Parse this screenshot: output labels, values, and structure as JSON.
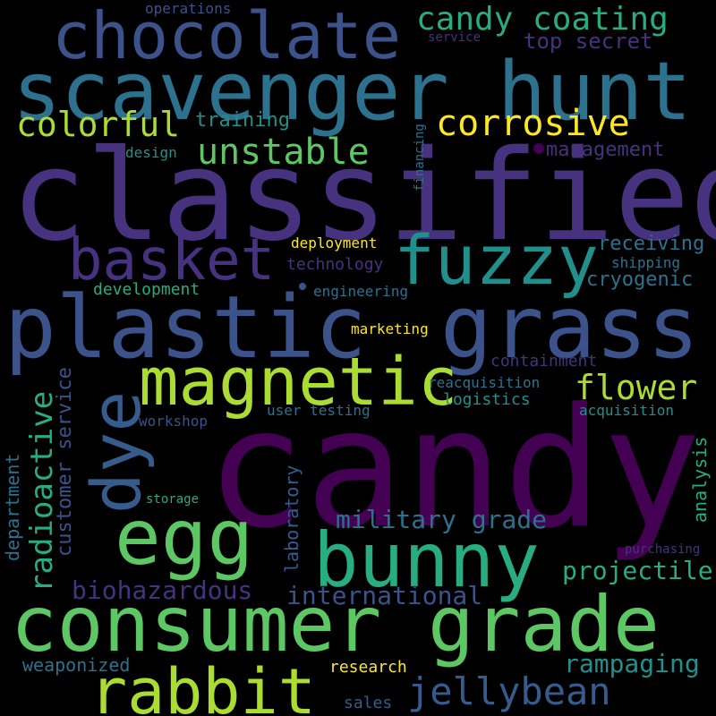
{
  "words": {
    "candy": "candy",
    "classified": "classified",
    "plastic": "plastic",
    "grass": "grass",
    "scavenger_hunt": "scavenger hunt",
    "consumer_grade": "consumer grade",
    "bunny": "bunny",
    "chocolate": "chocolate",
    "magnetic": "magnetic",
    "egg": "egg",
    "rabbit": "rabbit",
    "fuzzy": "fuzzy",
    "dye": "dye",
    "basket": "basket",
    "unstable": "unstable",
    "corrosive": "corrosive",
    "jellybean": "jellybean",
    "candy_coating": "candy coating",
    "colorful": "colorful",
    "flower": "flower",
    "military_grade": "military grade",
    "projectile": "projectile",
    "rampaging": "rampaging",
    "biohazardous": "biohazardous",
    "international": "international",
    "radioactive": "radioactive",
    "customer_service": "customer service",
    "department": "department",
    "laboratory": "laboratory",
    "analysis": "analysis",
    "financing": "financing",
    "top_secret": "top secret",
    "training": "training",
    "management": "management",
    "receiving": "receiving",
    "cryogenic": "cryogenic",
    "technology": "technology",
    "development": "development",
    "deployment": "deployment",
    "engineering": "engineering",
    "shipping": "shipping",
    "design": "design",
    "operations": "operations",
    "service": "service",
    "marketing": "marketing",
    "containment": "containment",
    "reacquisition": "reacquisition",
    "logistics": "logistics",
    "user_testing": "user testing",
    "acquisition": "acquisition",
    "workshop": "workshop",
    "storage": "storage",
    "purchasing": "purchasing",
    "weaponized": "weaponized",
    "research": "research",
    "sales": "sales"
  },
  "colors": {
    "background": "#000000",
    "palette": [
      "#440154",
      "#46327e",
      "#3b528b",
      "#365c8d",
      "#2c728e",
      "#21908c",
      "#27ad81",
      "#5dc863",
      "#aadc32",
      "#fde725"
    ]
  }
}
